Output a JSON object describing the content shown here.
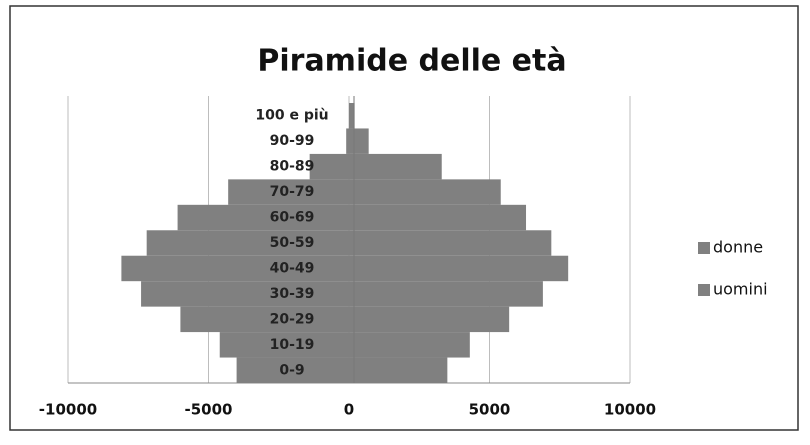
{
  "chart_data": {
    "type": "bar",
    "orientation": "horizontal",
    "stacked": true,
    "title": "Piramide delle età",
    "categories": [
      "0-9",
      "10-19",
      "20-29",
      "30-39",
      "40-49",
      "50-59",
      "60-69",
      "70-79",
      "80-89",
      "90-99",
      "100 e più"
    ],
    "series": [
      {
        "name": "donne",
        "color": "#808080",
        "values": [
          -4000,
          -4600,
          -6000,
          -7400,
          -8100,
          -7200,
          -6100,
          -4300,
          -1400,
          -100,
          0
        ]
      },
      {
        "name": "uomini",
        "color": "#808080",
        "values": [
          3500,
          4300,
          5700,
          6900,
          7800,
          7200,
          6300,
          5400,
          3300,
          700,
          200
        ]
      }
    ],
    "xlim": [
      -10000,
      10000
    ],
    "xticks": [
      -10000,
      -5000,
      0,
      5000,
      10000
    ],
    "grid": true,
    "legend": "right"
  }
}
